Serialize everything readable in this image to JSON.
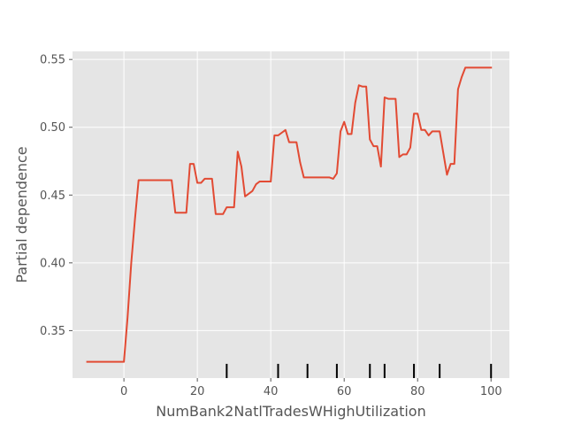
{
  "chart_data": {
    "type": "line",
    "title": "",
    "xlabel": "NumBank2NatlTradesWHighUtilization",
    "ylabel": "Partial dependence",
    "xlim": [
      -14,
      105
    ],
    "ylim": [
      0.315,
      0.556
    ],
    "grid": true,
    "x_ticks": [
      0,
      20,
      40,
      60,
      80,
      100
    ],
    "x_tick_labels": [
      "0",
      "20",
      "40",
      "60",
      "80",
      "100"
    ],
    "y_ticks": [
      0.35,
      0.4,
      0.45,
      0.5,
      0.55
    ],
    "y_tick_labels": [
      "0.35",
      "0.40",
      "0.45",
      "0.50",
      "0.55"
    ],
    "colors": {
      "line": "#e24a33",
      "background": "#e5e5e5",
      "grid": "#ffffff",
      "rug": "#000000",
      "text": "#555555"
    },
    "series": [
      {
        "x": [
          -10,
          0,
          1,
          2,
          3,
          4,
          13,
          14,
          17,
          18,
          19,
          20,
          21,
          22,
          23,
          24,
          25,
          26,
          27,
          28,
          29,
          30,
          31,
          32,
          33,
          34,
          35,
          36,
          37,
          38,
          39,
          40,
          41,
          42,
          43,
          44,
          45,
          46,
          47,
          48,
          49,
          50,
          51,
          52,
          53,
          54,
          55,
          56,
          57,
          58,
          59,
          60,
          61,
          62,
          63,
          64,
          65,
          66,
          67,
          68,
          69,
          70,
          71,
          72,
          73,
          74,
          75,
          76,
          77,
          78,
          79,
          80,
          81,
          82,
          83,
          84,
          85,
          86,
          87,
          88,
          89,
          90,
          91,
          92,
          93,
          94,
          100
        ],
        "y": [
          0.327,
          0.327,
          0.36,
          0.4,
          0.432,
          0.461,
          0.461,
          0.437,
          0.437,
          0.473,
          0.473,
          0.459,
          0.459,
          0.462,
          0.462,
          0.462,
          0.436,
          0.436,
          0.436,
          0.441,
          0.441,
          0.441,
          0.482,
          0.471,
          0.449,
          0.451,
          0.453,
          0.458,
          0.46,
          0.46,
          0.46,
          0.46,
          0.494,
          0.494,
          0.496,
          0.498,
          0.489,
          0.489,
          0.489,
          0.474,
          0.463,
          0.463,
          0.463,
          0.463,
          0.463,
          0.463,
          0.463,
          0.463,
          0.462,
          0.466,
          0.497,
          0.504,
          0.495,
          0.495,
          0.518,
          0.531,
          0.53,
          0.53,
          0.491,
          0.486,
          0.486,
          0.471,
          0.522,
          0.521,
          0.521,
          0.521,
          0.478,
          0.48,
          0.48,
          0.485,
          0.51,
          0.51,
          0.498,
          0.498,
          0.494,
          0.497,
          0.497,
          0.497,
          0.481,
          0.465,
          0.473,
          0.473,
          0.528,
          0.537,
          0.544,
          0.544,
          0.544
        ]
      }
    ],
    "rug": [
      28,
      42,
      50,
      58,
      67,
      71,
      79,
      86,
      100
    ]
  }
}
